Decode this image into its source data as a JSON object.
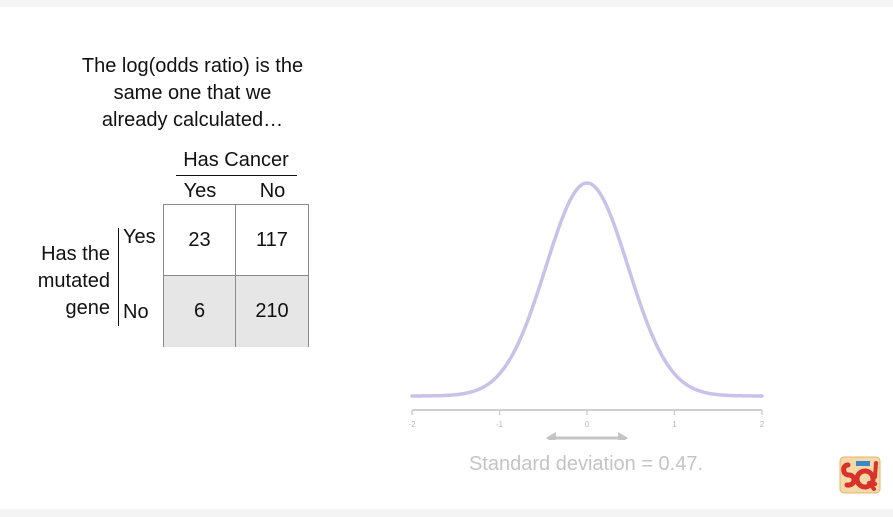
{
  "caption": {
    "line1": "The log(odds ratio) is the",
    "line2": "same one that we",
    "line3": "already calculated…"
  },
  "table": {
    "column_group_label": "Has Cancer",
    "column_labels": [
      "Yes",
      "No"
    ],
    "row_group_label": [
      "Has the",
      "mutated",
      "gene"
    ],
    "row_labels": [
      "Yes",
      "No"
    ],
    "cells": [
      [
        "23",
        "117"
      ],
      [
        "6",
        "210"
      ]
    ]
  },
  "distribution": {
    "axis_ticks": [
      "-2",
      "-1",
      "0",
      "1",
      "2"
    ],
    "x_range": [
      -2,
      2
    ],
    "mean": 0,
    "standard_deviation": 0.47,
    "curve_color": "#c9c1ea",
    "axis_color": "#d0d0d0",
    "arrow_color": "#c4c4c4",
    "arrow_span": [
      -0.47,
      0.47
    ],
    "sd_label": "Standard deviation = 0.47."
  },
  "logo": {
    "icon": "statquest-logo-icon",
    "lettering": "SQ!"
  }
}
